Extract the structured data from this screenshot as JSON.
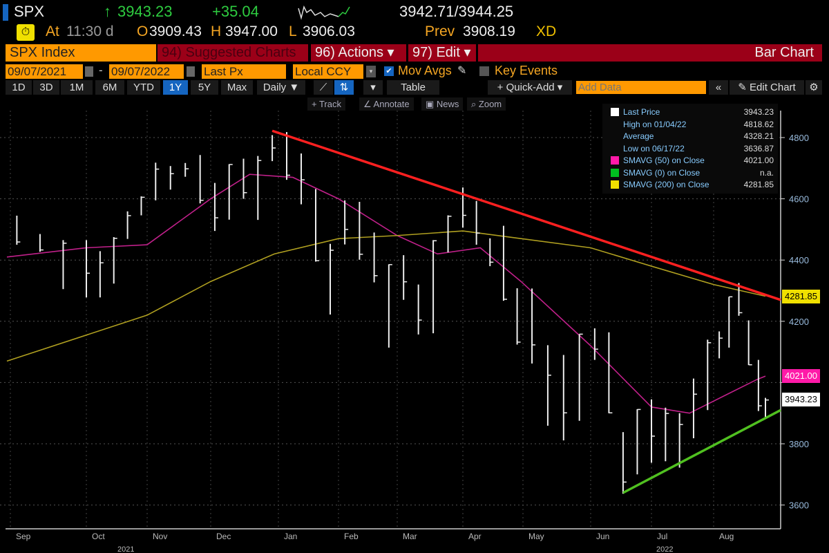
{
  "header": {
    "ticker": "SPX",
    "last": "3943.23",
    "change": "+35.04",
    "bid_ask": "3942.71/3944.25",
    "at_label": "At",
    "time": "11:30 d",
    "open_label": "O",
    "open": "3909.43",
    "high_label": "H",
    "high": "3947.00",
    "low_label": "L",
    "low": "3906.03",
    "prev_label": "Prev",
    "prev": "3908.19",
    "xd": "XD",
    "up_arrow": "↑"
  },
  "menu": {
    "security": "SPX Index",
    "suggested": "94) Suggested Charts",
    "actions": "96) Actions ▾",
    "edit": "97) Edit ▾",
    "chart_type": "Bar Chart"
  },
  "controls": {
    "start_date": "09/07/2021",
    "dash": "-",
    "end_date": "09/07/2022",
    "field": "Last Px",
    "currency": "Local CCY",
    "mov_avgs": "Mov Avgs",
    "mov_avgs_checked": true,
    "key_events": "Key Events",
    "key_events_checked": false
  },
  "periods": [
    {
      "label": "1D"
    },
    {
      "label": "3D"
    },
    {
      "label": "1M"
    },
    {
      "label": "6M"
    },
    {
      "label": "YTD"
    },
    {
      "label": "1Y",
      "selected": true
    },
    {
      "label": "5Y"
    },
    {
      "label": "Max"
    }
  ],
  "toolbar": {
    "frequency": "Daily ▼",
    "table": "Table",
    "quick_add": "+ Quick-Add ▾",
    "add_data_placeholder": "Add Data",
    "collapse": "«",
    "edit_chart": "✎ Edit Chart",
    "settings": "⚙"
  },
  "tools": {
    "track": "+ Track",
    "annotate": "∠ Annotate",
    "news": "▣ News",
    "zoom": "⌕ Zoom"
  },
  "legend": [
    {
      "label": "Last Price",
      "value": "3943.23",
      "color": "#ffffff"
    },
    {
      "label": "High on 01/04/22",
      "value": "4818.62"
    },
    {
      "label": "Average",
      "value": "4328.21"
    },
    {
      "label": "Low on 06/17/22",
      "value": "3636.87"
    },
    {
      "label": "SMAVG (50)  on Close",
      "value": "4021.00",
      "color": "#ff1aa8"
    },
    {
      "label": "SMAVG (0)  on Close",
      "value": "n.a.",
      "color": "#00c020"
    },
    {
      "label": "SMAVG (200)  on Close",
      "value": "4281.85",
      "color": "#f0e000"
    }
  ],
  "price_tags": {
    "ma200": "4281.85",
    "ma50": "4021.00",
    "last": "3943.23"
  },
  "chart_data": {
    "type": "bar",
    "ylim": [
      3550,
      4880
    ],
    "yticks": [
      3600,
      3800,
      4000,
      4200,
      4400,
      4600,
      4800
    ],
    "xticks": [
      "Sep",
      "Oct",
      "Nov",
      "Dec",
      "Jan",
      "Feb",
      "Mar",
      "Apr",
      "May",
      "Jun",
      "Jul",
      "Aug"
    ],
    "years": [
      "2021",
      "2022"
    ],
    "grid": true,
    "ohlc_weekly": [
      [
        "2021-09-10",
        4545,
        4450,
        4459
      ],
      [
        "2021-09-17",
        4485,
        4427,
        4433
      ],
      [
        "2021-09-24",
        4465,
        4305,
        4455
      ],
      [
        "2021-10-01",
        4465,
        4278,
        4357
      ],
      [
        "2021-10-08",
        4429,
        4278,
        4391
      ],
      [
        "2021-10-15",
        4475,
        4323,
        4471
      ],
      [
        "2021-10-22",
        4559,
        4469,
        4545
      ],
      [
        "2021-10-29",
        4608,
        4546,
        4605
      ],
      [
        "2021-11-05",
        4718,
        4595,
        4697
      ],
      [
        "2021-11-12",
        4707,
        4630,
        4682
      ],
      [
        "2021-11-19",
        4717,
        4672,
        4698
      ],
      [
        "2021-11-26",
        4743,
        4585,
        4595
      ],
      [
        "2021-12-03",
        4652,
        4495,
        4538
      ],
      [
        "2021-12-10",
        4713,
        4532,
        4712
      ],
      [
        "2021-12-17",
        4731,
        4600,
        4620
      ],
      [
        "2021-12-24",
        4740,
        4531,
        4725
      ],
      [
        "2021-12-31",
        4808,
        4723,
        4766
      ],
      [
        "2022-01-07",
        4818,
        4662,
        4677
      ],
      [
        "2022-01-14",
        4748,
        4582,
        4662
      ],
      [
        "2022-01-21",
        4632,
        4395,
        4398
      ],
      [
        "2022-01-28",
        4453,
        4222,
        4432
      ],
      [
        "2022-02-04",
        4595,
        4451,
        4500
      ],
      [
        "2022-02-11",
        4590,
        4401,
        4419
      ],
      [
        "2022-02-18",
        4490,
        4327,
        4349
      ],
      [
        "2022-02-25",
        4386,
        4114,
        4385
      ],
      [
        "2022-03-04",
        4416,
        4270,
        4329
      ],
      [
        "2022-03-11",
        4320,
        4157,
        4204
      ],
      [
        "2022-03-18",
        4465,
        4161,
        4463
      ],
      [
        "2022-03-25",
        4546,
        4425,
        4543
      ],
      [
        "2022-04-01",
        4637,
        4506,
        4546
      ],
      [
        "2022-04-08",
        4593,
        4450,
        4488
      ],
      [
        "2022-04-15",
        4471,
        4380,
        4393
      ],
      [
        "2022-04-22",
        4512,
        4267,
        4272
      ],
      [
        "2022-04-29",
        4308,
        4124,
        4132
      ],
      [
        "2022-05-06",
        4307,
        4062,
        4123
      ],
      [
        "2022-05-13",
        4122,
        3859,
        4024
      ],
      [
        "2022-05-20",
        4090,
        3811,
        3901
      ],
      [
        "2022-05-27",
        4158,
        3875,
        4158
      ],
      [
        "2022-06-03",
        4177,
        4074,
        4109
      ],
      [
        "2022-06-10",
        4164,
        3900,
        3901
      ],
      [
        "2022-06-17",
        3838,
        3637,
        3675
      ],
      [
        "2022-06-24",
        3913,
        3700,
        3912
      ],
      [
        "2022-07-01",
        3945,
        3738,
        3825
      ],
      [
        "2022-07-08",
        3918,
        3743,
        3899
      ],
      [
        "2022-07-15",
        3900,
        3722,
        3863
      ],
      [
        "2022-07-22",
        4013,
        3818,
        3962
      ],
      [
        "2022-07-29",
        4140,
        3910,
        4130
      ],
      [
        "2022-08-05",
        4167,
        4079,
        4145
      ],
      [
        "2022-08-12",
        4280,
        4114,
        4280
      ],
      [
        "2022-08-19",
        4325,
        4218,
        4228
      ],
      [
        "2022-08-26",
        4203,
        4057,
        4058
      ],
      [
        "2022-09-02",
        4074,
        3907,
        3924
      ],
      [
        "2022-09-07",
        3950,
        3886,
        3943
      ]
    ],
    "series": [
      {
        "name": "SMAVG (50)",
        "color": "#c0208a",
        "points": [
          [
            "2021-09-07",
            4410
          ],
          [
            "2021-10-01",
            4440
          ],
          [
            "2021-11-01",
            4450
          ],
          [
            "2021-12-01",
            4600
          ],
          [
            "2021-12-20",
            4680
          ],
          [
            "2022-01-10",
            4670
          ],
          [
            "2022-02-01",
            4600
          ],
          [
            "2022-03-01",
            4480
          ],
          [
            "2022-03-20",
            4420
          ],
          [
            "2022-04-10",
            4440
          ],
          [
            "2022-05-01",
            4330
          ],
          [
            "2022-06-01",
            4120
          ],
          [
            "2022-07-01",
            3920
          ],
          [
            "2022-07-20",
            3900
          ],
          [
            "2022-08-10",
            3960
          ],
          [
            "2022-09-01",
            4010
          ],
          [
            "2022-09-07",
            4021
          ]
        ]
      },
      {
        "name": "SMAVG (200)",
        "color": "#b0a020",
        "points": [
          [
            "2021-09-07",
            4070
          ],
          [
            "2021-11-01",
            4220
          ],
          [
            "2021-12-01",
            4330
          ],
          [
            "2022-01-01",
            4420
          ],
          [
            "2022-02-01",
            4470
          ],
          [
            "2022-03-01",
            4480
          ],
          [
            "2022-04-01",
            4495
          ],
          [
            "2022-05-01",
            4470
          ],
          [
            "2022-06-01",
            4440
          ],
          [
            "2022-07-01",
            4380
          ],
          [
            "2022-08-01",
            4320
          ],
          [
            "2022-09-07",
            4282
          ]
        ]
      }
    ],
    "trendlines": [
      {
        "color": "#ff2020",
        "from": [
          "2021-12-31",
          4822
        ],
        "to": [
          "2022-09-07",
          4270
        ]
      },
      {
        "color": "#50c020",
        "from": [
          "2022-06-17",
          3640
        ],
        "to": [
          "2022-09-07",
          3910
        ]
      }
    ]
  }
}
